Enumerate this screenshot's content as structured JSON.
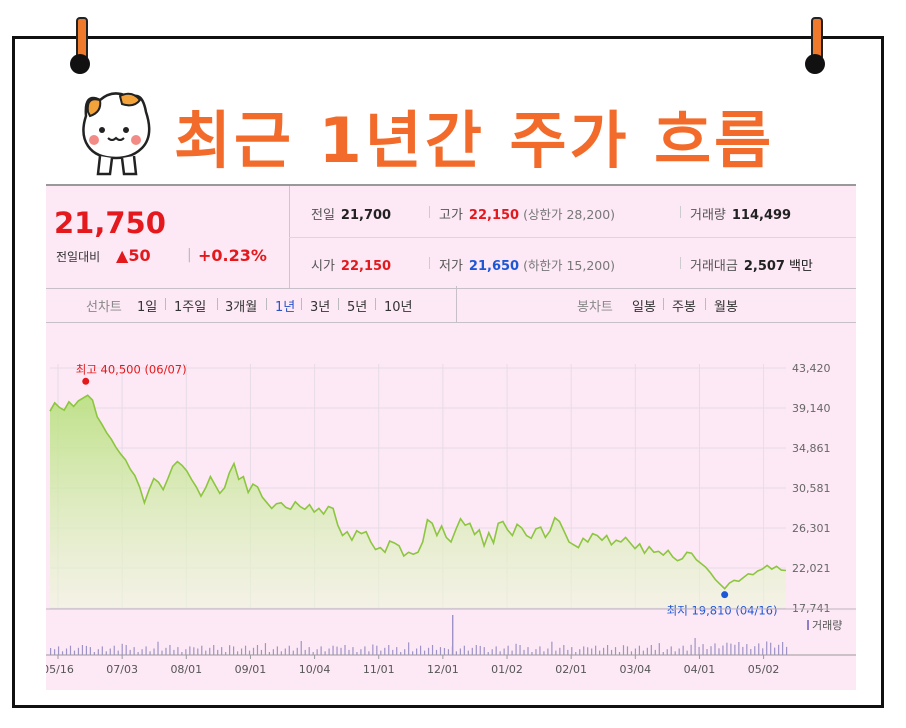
{
  "heading": "최근 1년간 주가 흐름",
  "summary": {
    "price": "21,750",
    "change_label": "전일대비",
    "change_arrow": "▲",
    "change_value": "50",
    "change_pct": "+0.23%",
    "prev_close": {
      "label": "전일",
      "value": "21,700"
    },
    "high": {
      "label": "고가",
      "value": "22,150",
      "limit_label": "(상한가 28,200)"
    },
    "volume": {
      "label": "거래량",
      "value": "114,499"
    },
    "open": {
      "label": "시가",
      "value": "22,150"
    },
    "low": {
      "label": "저가",
      "value": "21,650",
      "limit_label": "(하한가 15,200)"
    },
    "turnover": {
      "label": "거래대금",
      "value": "2,507",
      "unit": "백만"
    }
  },
  "period_tabs": {
    "label": "선차트",
    "items": [
      "1일",
      "1주일",
      "3개월",
      "1년",
      "3년",
      "5년",
      "10년"
    ],
    "active": "1년"
  },
  "candle_tabs": {
    "label": "봉차트",
    "items": [
      "일봉",
      "주봉",
      "월봉"
    ]
  },
  "colors": {
    "accent": "#f26b2a",
    "up": "#e3191d",
    "down": "#1e57d6",
    "line": "#8cc63f",
    "area": "#d9f0b8",
    "panel": "#fde9f5"
  },
  "chart_data": {
    "type": "area",
    "y_ticks": [
      "43,420",
      "39,140",
      "34,861",
      "30,581",
      "26,301",
      "22,021",
      "17,741"
    ],
    "ylim": [
      17741,
      43420
    ],
    "x_ticks": [
      "05/16",
      "07/03",
      "08/01",
      "09/01",
      "10/04",
      "11/01",
      "12/01",
      "01/02",
      "02/01",
      "03/04",
      "04/01",
      "05/02"
    ],
    "max_annotation": {
      "text": "최고 40,500 (06/07)",
      "value": 40500
    },
    "min_annotation": {
      "text": "최저 19,810 (04/16)",
      "value": 19810
    },
    "volume_label": "거래량",
    "grid": true,
    "series": [
      {
        "values": [
          38800,
          39700,
          39200,
          38900,
          39800,
          39300,
          39900,
          40200,
          40500,
          40000,
          38200,
          37400,
          36500,
          35800,
          34900,
          34200,
          33600,
          32600,
          31900,
          30700,
          29000,
          30400,
          31600,
          31200,
          30400,
          31600,
          32900,
          33400,
          33000,
          32400,
          31500,
          30700,
          29700,
          30600,
          31800,
          30900,
          30000,
          30600,
          32200,
          33200,
          31500,
          31800,
          30100,
          31000,
          30700,
          29600,
          29000,
          28400,
          28900,
          29000,
          28500,
          28300,
          29100,
          28600,
          28300,
          28800,
          28000,
          28400,
          27800,
          28600,
          28400,
          26600,
          25500,
          25900,
          25000,
          26000,
          25700,
          25900,
          24800,
          24000,
          24200,
          23700,
          24900,
          24700,
          24400,
          23300,
          23700,
          23500,
          23700,
          24800,
          27200,
          26800,
          25500,
          26500,
          25300,
          24800,
          26100,
          27300,
          26600,
          26800,
          25600,
          26100,
          24400,
          25800,
          24700,
          26800,
          27000,
          26100,
          25500,
          26700,
          26300,
          25500,
          25200,
          26200,
          26400,
          25300,
          26000,
          27400,
          27000,
          25900,
          24800,
          24500,
          24200,
          25200,
          24800,
          25700,
          25500,
          25000,
          25500,
          24500,
          25000,
          24800,
          25300,
          24700,
          24100,
          24600,
          23600,
          24300,
          23700,
          23800,
          23400,
          23900,
          23200,
          22800,
          23000,
          23700,
          23600,
          22900,
          22500,
          22100,
          21500,
          20800,
          20300,
          19810,
          20400,
          20700,
          20600,
          21000,
          21400,
          21300,
          21700,
          21900,
          22300,
          21900,
          22200,
          21800,
          21750
        ]
      }
    ]
  }
}
